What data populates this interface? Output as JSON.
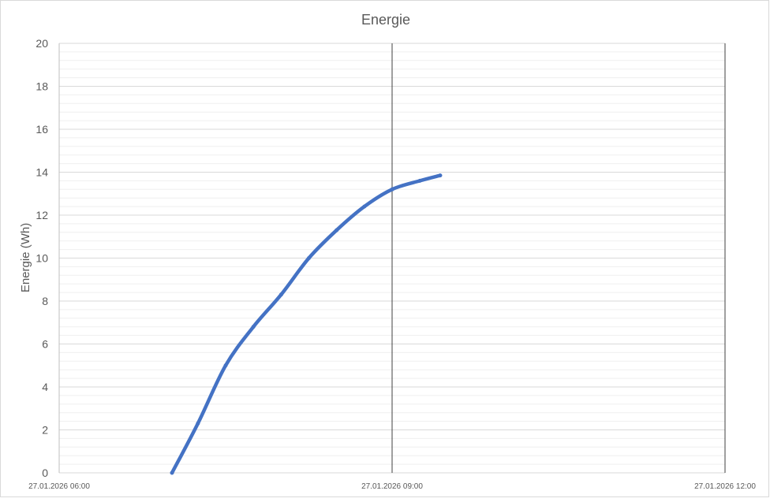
{
  "chart_data": {
    "type": "line",
    "title": "Energie",
    "xlabel": "",
    "ylabel": "Energie (Wh)",
    "ylim": [
      0,
      20
    ],
    "yticks": [
      0,
      2,
      4,
      6,
      8,
      10,
      12,
      14,
      16,
      18,
      20
    ],
    "y_minor_step": 0.4,
    "xlim": [
      "06:00",
      "12:00"
    ],
    "xtick_labels": [
      "27.01.2026 06:00",
      "27.01.2026 09:00",
      "27.01.2026 12:00"
    ],
    "xtick_times": [
      "06:00",
      "09:00",
      "12:00"
    ],
    "grid": true,
    "legend": "none",
    "series": [
      {
        "color": "#4472c4",
        "x": [
          "07:01",
          "07:15",
          "07:30",
          "07:45",
          "08:00",
          "08:15",
          "08:30",
          "08:45",
          "09:00",
          "09:15",
          "09:26"
        ],
        "y": [
          0,
          2.3,
          5.0,
          6.8,
          8.3,
          10.0,
          11.3,
          12.4,
          13.2,
          13.6,
          13.85
        ]
      }
    ]
  }
}
